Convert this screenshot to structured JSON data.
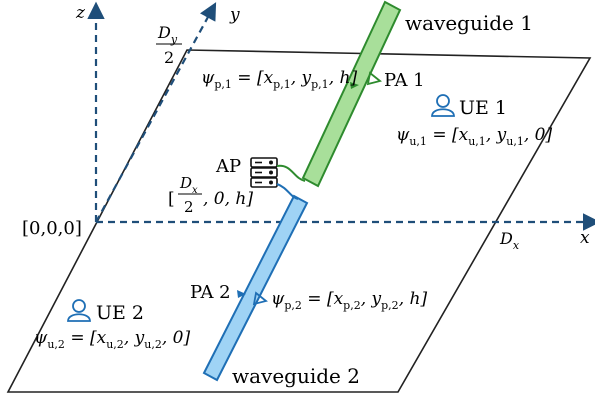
{
  "axes": {
    "z": "z",
    "y": "y",
    "x": "x",
    "origin": "[0,0,0]",
    "dy_half_num": "D",
    "dy_half_sub": "y",
    "dy_half_den": "2",
    "dx_label": "D",
    "dx_sub": "x"
  },
  "waveguides": [
    {
      "label": "waveguide 1",
      "color": "#a8df9a",
      "stroke": "#2e8b2e"
    },
    {
      "label": "waveguide 2",
      "color": "#9fd3f5",
      "stroke": "#1f6fb5"
    }
  ],
  "pas": [
    {
      "label": "PA 1",
      "psi": "ψ",
      "sub": "p,1",
      "eq": " = [x",
      "s1": "p,1",
      "c1": ", y",
      "s2": "p,1",
      "tail": ", h]"
    },
    {
      "label": "PA 2",
      "psi": "ψ",
      "sub": "p,2",
      "eq": " = [x",
      "s1": "p,2",
      "c1": ", y",
      "s2": "p,2",
      "tail": ", h]"
    }
  ],
  "ues": [
    {
      "label": "UE 1",
      "psi": "ψ",
      "sub": "u,1",
      "eq": " = [x",
      "s1": "u,1",
      "c1": ", y",
      "s2": "u,1",
      "tail": ", 0]"
    },
    {
      "label": "UE 2",
      "psi": "ψ",
      "sub": "u,2",
      "eq": " = [x",
      "s1": "u,2",
      "c1": ", y",
      "s2": "u,2",
      "tail": ", 0]"
    }
  ],
  "ap": {
    "label": "AP",
    "pos_open": "[",
    "pos_num": "D",
    "pos_num_sub": "x",
    "pos_den": "2",
    "pos_tail": ", 0, h]"
  },
  "colors": {
    "axis": "#1f4e79",
    "user_icon": "#1f6fb5",
    "pa1_icon": "#2e8b2e",
    "pa2_icon": "#1f6fb5"
  }
}
